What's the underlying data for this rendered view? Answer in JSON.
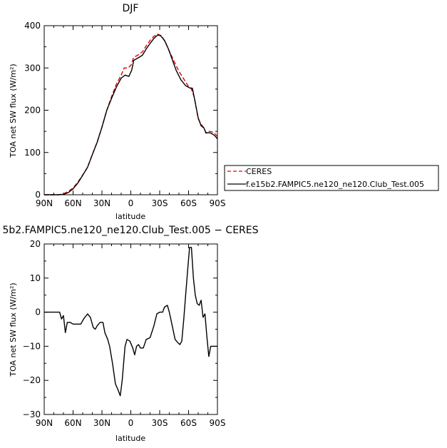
{
  "chart_data": [
    {
      "type": "line",
      "title": "DJF",
      "xlabel": "latitude",
      "ylabel": "TOA net SW flux (W/m²)",
      "xlim": [
        90,
        -90
      ],
      "ylim": [
        0,
        400
      ],
      "xticks": [
        90,
        60,
        30,
        0,
        -30,
        -60,
        -90
      ],
      "xtick_labels": [
        "90N",
        "60N",
        "30N",
        "0",
        "30S",
        "60S",
        "90S"
      ],
      "yticks": [
        0,
        100,
        200,
        300,
        400
      ],
      "ytick_labels": [
        "0",
        "100",
        "200",
        "300",
        "400"
      ],
      "legend_position": "right",
      "series": [
        {
          "name": "CERES",
          "color": "#e00000",
          "dash": "dashed",
          "points": [
            [
              90,
              0
            ],
            [
              80,
              0
            ],
            [
              75,
              0
            ],
            [
              70,
              2
            ],
            [
              65,
              8
            ],
            [
              60,
              16
            ],
            [
              55,
              30
            ],
            [
              50,
              47
            ],
            [
              45,
              65
            ],
            [
              40,
              95
            ],
            [
              35,
              125
            ],
            [
              30,
              160
            ],
            [
              25,
              200
            ],
            [
              20,
              232
            ],
            [
              15,
              262
            ],
            [
              10,
              283
            ],
            [
              7,
              300
            ],
            [
              3,
              300
            ],
            [
              0,
              306
            ],
            [
              -3,
              325
            ],
            [
              -7,
              330
            ],
            [
              -12,
              338
            ],
            [
              -16,
              352
            ],
            [
              -20,
              365
            ],
            [
              -24,
              375
            ],
            [
              -28,
              380
            ],
            [
              -32,
              376
            ],
            [
              -36,
              360
            ],
            [
              -40,
              340
            ],
            [
              -45,
              315
            ],
            [
              -50,
              292
            ],
            [
              -55,
              274
            ],
            [
              -60,
              256
            ],
            [
              -63,
              250
            ],
            [
              -66,
              230
            ],
            [
              -70,
              180
            ],
            [
              -73,
              167
            ],
            [
              -76,
              158
            ],
            [
              -78,
              147
            ],
            [
              -81,
              150
            ],
            [
              -84,
              149
            ],
            [
              -86,
              147
            ],
            [
              -88,
              143
            ],
            [
              -90,
              138
            ]
          ]
        },
        {
          "name": "f.e15b2.FAMPIC5.ne120_ne120.Club_Test.005",
          "color": "#000000",
          "dash": "solid",
          "points": [
            [
              90,
              0
            ],
            [
              80,
              0
            ],
            [
              75,
              0
            ],
            [
              70,
              1
            ],
            [
              65,
              5
            ],
            [
              60,
              14
            ],
            [
              55,
              28
            ],
            [
              50,
              46
            ],
            [
              45,
              65
            ],
            [
              40,
              95
            ],
            [
              35,
              124
            ],
            [
              30,
              160
            ],
            [
              25,
              200
            ],
            [
              20,
              228
            ],
            [
              15,
              255
            ],
            [
              10,
              276
            ],
            [
              6,
              283
            ],
            [
              2,
              280
            ],
            [
              -1,
              295
            ],
            [
              -3,
              318
            ],
            [
              -7,
              323
            ],
            [
              -12,
              330
            ],
            [
              -16,
              345
            ],
            [
              -20,
              358
            ],
            [
              -24,
              370
            ],
            [
              -28,
              378
            ],
            [
              -31,
              376
            ],
            [
              -35,
              365
            ],
            [
              -39,
              345
            ],
            [
              -43,
              320
            ],
            [
              -47,
              295
            ],
            [
              -52,
              272
            ],
            [
              -57,
              258
            ],
            [
              -61,
              253
            ],
            [
              -64,
              252
            ],
            [
              -66,
              229
            ],
            [
              -70,
              182
            ],
            [
              -73,
              163
            ],
            [
              -76,
              158
            ],
            [
              -78,
              146
            ],
            [
              -81,
              147
            ],
            [
              -83,
              146
            ],
            [
              -86,
              142
            ],
            [
              -88,
              138
            ],
            [
              -90,
              132
            ]
          ]
        }
      ]
    },
    {
      "type": "line",
      "title": "5b2.FAMPIC5.ne120_ne120.Club_Test.005 − CERES",
      "xlabel": "latitude",
      "ylabel": "TOA net SW flux (W/m²)",
      "xlim": [
        90,
        -90
      ],
      "ylim": [
        -30,
        20
      ],
      "xticks": [
        90,
        60,
        30,
        0,
        -30,
        -60,
        -90
      ],
      "xtick_labels": [
        "90N",
        "60N",
        "30N",
        "0",
        "30S",
        "60S",
        "90S"
      ],
      "yticks": [
        -30,
        -20,
        -10,
        0,
        10,
        20
      ],
      "ytick_labels": [
        "−30",
        "−20",
        "−10",
        "0",
        "10",
        "20"
      ],
      "series": [
        {
          "color": "#000000",
          "dash": "solid",
          "points": [
            [
              90,
              0
            ],
            [
              80,
              0
            ],
            [
              74,
              0
            ],
            [
              72,
              -2
            ],
            [
              70,
              -1
            ],
            [
              68,
              -6
            ],
            [
              66,
              -3
            ],
            [
              63,
              -3
            ],
            [
              60,
              -3.5
            ],
            [
              55,
              -3.5
            ],
            [
              52,
              -3.5
            ],
            [
              49,
              -2
            ],
            [
              45,
              -0.5
            ],
            [
              42,
              -1.5
            ],
            [
              39,
              -4.5
            ],
            [
              37,
              -5
            ],
            [
              35,
              -4
            ],
            [
              32,
              -3
            ],
            [
              29,
              -3
            ],
            [
              27,
              -6
            ],
            [
              24,
              -8
            ],
            [
              22,
              -10
            ],
            [
              19,
              -15
            ],
            [
              16,
              -21
            ],
            [
              13,
              -23
            ],
            [
              11,
              -24.5
            ],
            [
              9,
              -20
            ],
            [
              6,
              -10
            ],
            [
              4,
              -8
            ],
            [
              1,
              -8.5
            ],
            [
              -2,
              -10.5
            ],
            [
              -4,
              -12.5
            ],
            [
              -6,
              -10
            ],
            [
              -8,
              -9.5
            ],
            [
              -10,
              -10.5
            ],
            [
              -13,
              -10.5
            ],
            [
              -16,
              -8
            ],
            [
              -20,
              -7.5
            ],
            [
              -24,
              -4
            ],
            [
              -27,
              -0.5
            ],
            [
              -30,
              0
            ],
            [
              -33,
              0
            ],
            [
              -35,
              1.5
            ],
            [
              -38,
              2
            ],
            [
              -40,
              0
            ],
            [
              -43,
              -4
            ],
            [
              -46,
              -8
            ],
            [
              -49,
              -9
            ],
            [
              -51,
              -9.5
            ],
            [
              -53,
              -8.5
            ],
            [
              -55,
              -2
            ],
            [
              -57,
              5
            ],
            [
              -59,
              12
            ],
            [
              -61,
              19
            ],
            [
              -63,
              19
            ],
            [
              -65,
              10
            ],
            [
              -67,
              5
            ],
            [
              -69,
              2.5
            ],
            [
              -71,
              2
            ],
            [
              -73,
              3.5
            ],
            [
              -75,
              -1.5
            ],
            [
              -77,
              -0.5
            ],
            [
              -79,
              -7
            ],
            [
              -81,
              -13
            ],
            [
              -83,
              -10
            ],
            [
              -90,
              -10
            ]
          ]
        }
      ]
    }
  ]
}
